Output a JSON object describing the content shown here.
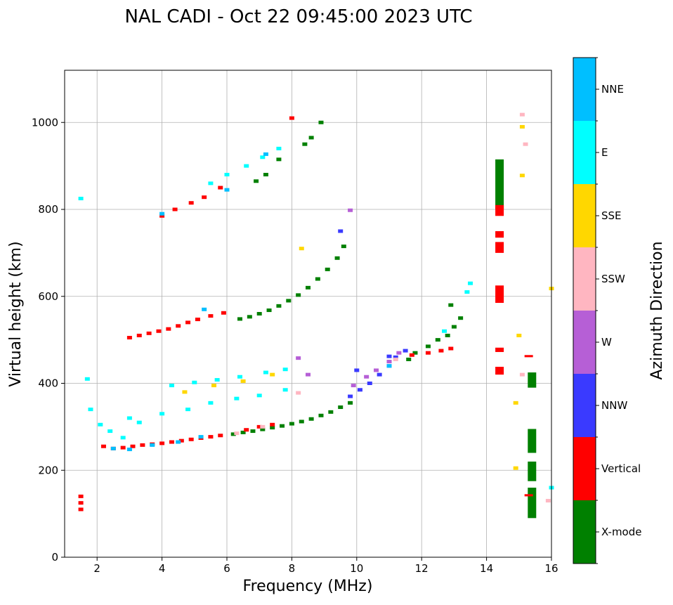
{
  "chart_data": {
    "type": "scatter",
    "title": "NAL CADI - Oct 22 09:45:00 2023 UTC",
    "xlabel": "Frequency (MHz)",
    "ylabel": "Virtual height (km)",
    "xlim": [
      1,
      16
    ],
    "ylim": [
      0,
      1120
    ],
    "xticks": [
      2,
      4,
      6,
      8,
      10,
      12,
      14,
      16
    ],
    "yticks": [
      0,
      200,
      400,
      600,
      800,
      1000
    ],
    "grid": true,
    "colorbar": {
      "label": "Azimuth Direction",
      "categories": [
        "X-mode",
        "Vertical",
        "NNW",
        "W",
        "SSW",
        "SSE",
        "E",
        "NNE"
      ],
      "colors": [
        "#008000",
        "#ff0000",
        "#3a3aff",
        "#b65fd6",
        "#ffb6c1",
        "#ffd700",
        "#00ffff",
        "#00bfff"
      ]
    },
    "series": [
      {
        "name": "X-mode",
        "points": [
          [
            6.2,
            283
          ],
          [
            6.5,
            287
          ],
          [
            6.8,
            290
          ],
          [
            7.1,
            294
          ],
          [
            7.4,
            298
          ],
          [
            7.7,
            302
          ],
          [
            8.0,
            307
          ],
          [
            8.3,
            312
          ],
          [
            8.6,
            318
          ],
          [
            8.9,
            326
          ],
          [
            9.2,
            334
          ],
          [
            9.5,
            345
          ],
          [
            9.8,
            355
          ],
          [
            6.4,
            548
          ],
          [
            6.7,
            553
          ],
          [
            7.0,
            560
          ],
          [
            7.3,
            568
          ],
          [
            7.6,
            578
          ],
          [
            7.9,
            590
          ],
          [
            8.2,
            603
          ],
          [
            8.5,
            620
          ],
          [
            8.8,
            640
          ],
          [
            9.1,
            662
          ],
          [
            9.4,
            688
          ],
          [
            9.6,
            715
          ],
          [
            8.6,
            965
          ],
          [
            8.9,
            1000
          ],
          [
            8.4,
            950
          ],
          [
            7.6,
            915
          ],
          [
            7.2,
            880
          ],
          [
            6.9,
            865
          ],
          [
            11.8,
            470
          ],
          [
            12.2,
            485
          ],
          [
            12.5,
            500
          ],
          [
            12.8,
            510
          ],
          [
            13.0,
            530
          ],
          [
            13.2,
            550
          ],
          [
            12.9,
            580
          ],
          [
            11.6,
            455
          ]
        ]
      },
      {
        "name": "Vertical",
        "points": [
          [
            2.2,
            255
          ],
          [
            2.5,
            250
          ],
          [
            2.8,
            252
          ],
          [
            3.1,
            255
          ],
          [
            3.4,
            258
          ],
          [
            3.7,
            260
          ],
          [
            4.0,
            262
          ],
          [
            4.3,
            265
          ],
          [
            4.6,
            268
          ],
          [
            4.9,
            271
          ],
          [
            5.2,
            274
          ],
          [
            5.5,
            277
          ],
          [
            5.8,
            280
          ],
          [
            6.6,
            293
          ],
          [
            7.0,
            300
          ],
          [
            7.4,
            305
          ],
          [
            3.0,
            505
          ],
          [
            3.3,
            510
          ],
          [
            3.6,
            515
          ],
          [
            3.9,
            520
          ],
          [
            4.2,
            525
          ],
          [
            4.5,
            532
          ],
          [
            4.8,
            540
          ],
          [
            5.1,
            547
          ],
          [
            5.5,
            555
          ],
          [
            5.9,
            562
          ],
          [
            4.0,
            785
          ],
          [
            4.4,
            800
          ],
          [
            4.9,
            815
          ],
          [
            5.3,
            828
          ],
          [
            5.8,
            850
          ],
          [
            8.0,
            1010
          ],
          [
            11.7,
            465
          ],
          [
            12.2,
            470
          ],
          [
            12.6,
            475
          ],
          [
            12.9,
            480
          ],
          [
            1.5,
            140
          ],
          [
            1.5,
            125
          ],
          [
            1.5,
            110
          ]
        ]
      },
      {
        "name": "NNW",
        "points": [
          [
            9.8,
            370
          ],
          [
            10.1,
            385
          ],
          [
            10.4,
            400
          ],
          [
            10.7,
            420
          ],
          [
            11.0,
            440
          ],
          [
            11.2,
            460
          ],
          [
            11.5,
            475
          ],
          [
            10.0,
            430
          ],
          [
            9.5,
            750
          ],
          [
            11.0,
            462
          ]
        ]
      },
      {
        "name": "W",
        "points": [
          [
            9.9,
            395
          ],
          [
            10.3,
            415
          ],
          [
            10.6,
            430
          ],
          [
            11.0,
            450
          ],
          [
            11.3,
            470
          ],
          [
            8.5,
            420
          ],
          [
            9.8,
            798
          ],
          [
            8.2,
            458
          ]
        ]
      },
      {
        "name": "SSW",
        "points": [
          [
            6.3,
            285
          ],
          [
            7.1,
            300
          ],
          [
            8.2,
            378
          ],
          [
            11.2,
            455
          ],
          [
            15.1,
            420
          ],
          [
            15.1,
            1018
          ],
          [
            15.2,
            950
          ],
          [
            15.9,
            130
          ]
        ]
      },
      {
        "name": "SSE",
        "points": [
          [
            4.7,
            380
          ],
          [
            5.6,
            395
          ],
          [
            6.5,
            405
          ],
          [
            7.4,
            420
          ],
          [
            8.3,
            710
          ],
          [
            15.1,
            990
          ],
          [
            15.1,
            878
          ],
          [
            15.0,
            510
          ],
          [
            14.9,
            355
          ],
          [
            14.9,
            205
          ],
          [
            16.0,
            618
          ]
        ]
      },
      {
        "name": "E",
        "points": [
          [
            1.8,
            340
          ],
          [
            2.1,
            305
          ],
          [
            2.4,
            290
          ],
          [
            2.8,
            275
          ],
          [
            3.3,
            310
          ],
          [
            4.0,
            330
          ],
          [
            4.8,
            340
          ],
          [
            5.5,
            355
          ],
          [
            6.3,
            365
          ],
          [
            7.0,
            372
          ],
          [
            7.8,
            385
          ],
          [
            4.3,
            395
          ],
          [
            5.0,
            402
          ],
          [
            5.7,
            408
          ],
          [
            6.4,
            415
          ],
          [
            7.2,
            425
          ],
          [
            7.8,
            432
          ],
          [
            3.0,
            320
          ],
          [
            5.5,
            860
          ],
          [
            6.0,
            880
          ],
          [
            6.6,
            900
          ],
          [
            7.1,
            920
          ],
          [
            7.6,
            940
          ],
          [
            13.4,
            610
          ],
          [
            13.5,
            630
          ],
          [
            12.7,
            520
          ],
          [
            16.0,
            160
          ],
          [
            1.7,
            410
          ],
          [
            1.5,
            825
          ]
        ]
      },
      {
        "name": "NNE",
        "points": [
          [
            2.5,
            250
          ],
          [
            3.0,
            248
          ],
          [
            3.7,
            258
          ],
          [
            4.5,
            265
          ],
          [
            5.2,
            277
          ],
          [
            7.2,
            927
          ],
          [
            6.0,
            845
          ],
          [
            5.3,
            570
          ],
          [
            4.0,
            790
          ],
          [
            11.0,
            440
          ]
        ]
      }
    ],
    "bars": [
      {
        "name": "X-mode",
        "x": 14.4,
        "y": [
          800,
          915
        ]
      },
      {
        "name": "Vertical",
        "x": 14.4,
        "y": [
          785,
          810
        ]
      },
      {
        "name": "Vertical",
        "x": 14.4,
        "y": [
          735,
          750
        ]
      },
      {
        "name": "Vertical",
        "x": 14.4,
        "y": [
          700,
          725
        ]
      },
      {
        "name": "Vertical",
        "x": 14.4,
        "y": [
          585,
          625
        ]
      },
      {
        "name": "Vertical",
        "x": 14.4,
        "y": [
          472,
          482
        ]
      },
      {
        "name": "Vertical",
        "x": 14.4,
        "y": [
          420,
          438
        ]
      },
      {
        "name": "X-mode",
        "x": 15.4,
        "y": [
          390,
          425
        ]
      },
      {
        "name": "X-mode",
        "x": 15.4,
        "y": [
          240,
          295
        ]
      },
      {
        "name": "X-mode",
        "x": 15.4,
        "y": [
          175,
          220
        ]
      },
      {
        "name": "X-mode",
        "x": 15.4,
        "y": [
          90,
          160
        ]
      },
      {
        "name": "Vertical",
        "x": 15.3,
        "y": [
          460,
          465
        ]
      },
      {
        "name": "Vertical",
        "x": 15.3,
        "y": [
          140,
          145
        ]
      }
    ]
  }
}
